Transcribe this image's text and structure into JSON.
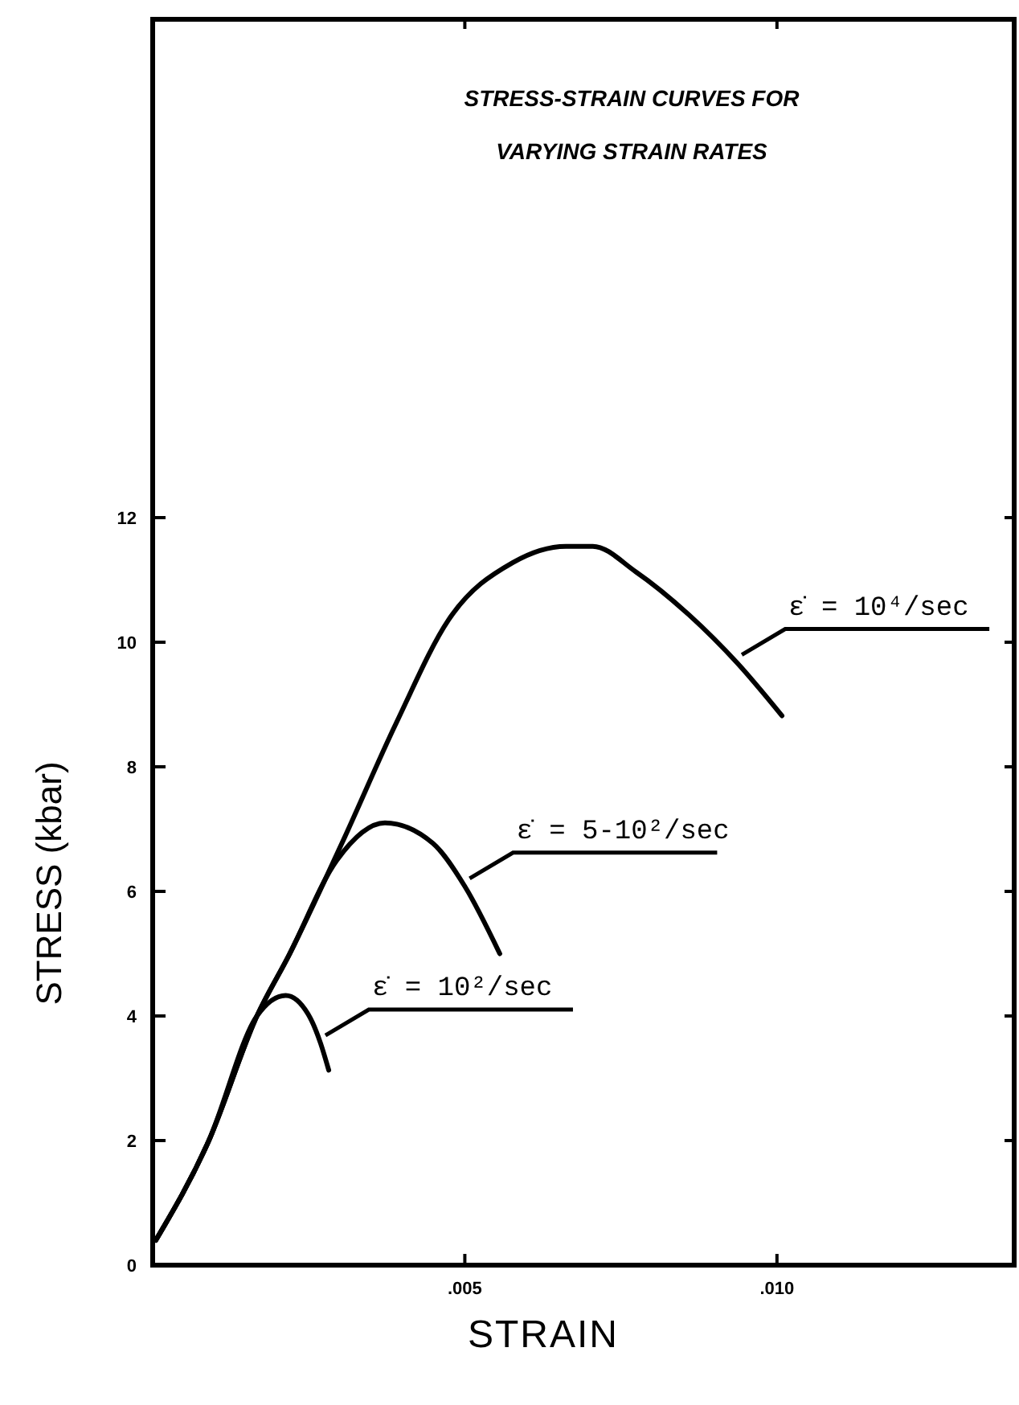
{
  "chart_data": {
    "type": "line",
    "title": "STRESS-STRAIN CURVES FOR VARYING STRAIN RATES",
    "xlabel": "STRAIN",
    "ylabel": "STRESS (kbar)",
    "xlim": [
      0,
      0.0138
    ],
    "ylim": [
      0,
      20
    ],
    "xticks": [
      {
        "value": 0.005,
        "label": ".005"
      },
      {
        "value": 0.01,
        "label": ".010"
      }
    ],
    "yticks": [
      0,
      2,
      4,
      6,
      8,
      10,
      12
    ],
    "grid": false,
    "marker": "none",
    "line_style": "solid",
    "series": [
      {
        "name": "ε̇ = 10⁴/sec",
        "color": "#000000",
        "x": [
          5e-05,
          0.0009,
          0.00167,
          0.00218,
          0.00303,
          0.0039,
          0.00474,
          0.00577,
          0.00662,
          0.00705,
          0.00774,
          0.00859,
          0.00936,
          0.01008
        ],
        "values": [
          0.4,
          2.0,
          4.0,
          4.97,
          6.77,
          8.7,
          10.36,
          11.28,
          11.54,
          11.54,
          11.13,
          10.44,
          9.67,
          8.82
        ]
      },
      {
        "name": "ε̇ = 5-10²/sec",
        "color": "#000000",
        "x": [
          5e-05,
          0.0009,
          0.00167,
          0.00218,
          0.00295,
          0.00372,
          0.00449,
          0.005,
          0.00556
        ],
        "values": [
          0.4,
          2.0,
          4.0,
          4.97,
          6.5,
          7.1,
          6.77,
          6.08,
          5.0
        ]
      },
      {
        "name": "ε̇ = 10²/sec",
        "color": "#000000",
        "x": [
          5e-05,
          0.0009,
          0.00167,
          0.00213,
          0.00249,
          0.00269,
          0.00282
        ],
        "values": [
          0.4,
          2.0,
          4.0,
          4.33,
          4.03,
          3.56,
          3.13
        ]
      }
    ]
  }
}
